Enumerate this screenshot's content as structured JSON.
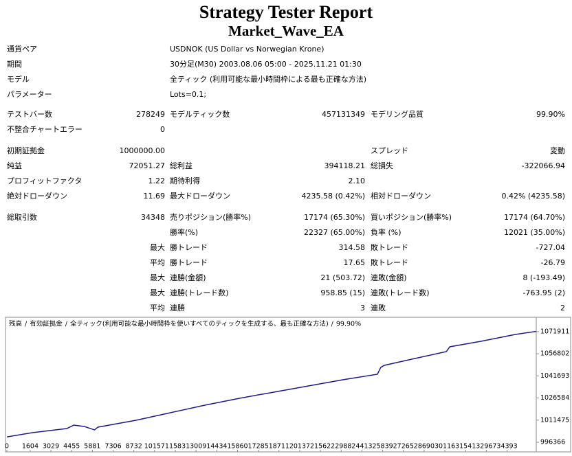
{
  "header": {
    "title": "Strategy Tester Report",
    "subtitle": "Market_Wave_EA"
  },
  "info": [
    [
      "通貨ペア",
      "USDNOK (US Dollar vs Norwegian Krone)"
    ],
    [
      "期間",
      "30分足(M30) 2003.08.06 05:00 - 2025.11.21 01:30"
    ],
    [
      "モデル",
      "全ティック (利用可能な最小時間枠による最も正確な方法)"
    ],
    [
      "パラメーター",
      "Lots=0.1;"
    ]
  ],
  "sections": [
    {
      "rows": [
        [
          "テストバー数",
          "278249",
          "モデルティック数",
          "457131349",
          "モデリング品質",
          "99.90%"
        ],
        [
          "不整合チャートエラー",
          "0",
          null,
          null,
          null,
          null
        ]
      ]
    },
    {
      "rows": [
        [
          "初期証拠金",
          "1000000.00",
          null,
          null,
          "スプレッド",
          "変動"
        ],
        [
          "純益",
          "72051.27",
          "総利益",
          "394118.21",
          "総損失",
          "-322066.94"
        ],
        [
          "プロフィットファクタ",
          "1.22",
          "期待利得",
          "2.10",
          null,
          null
        ],
        [
          "絶対ドローダウン",
          "11.69",
          "最大ドローダウン",
          "4235.58 (0.42%)",
          "相対ドローダウン",
          "0.42% (4235.58)"
        ]
      ]
    },
    {
      "rows": [
        [
          "総取引数",
          "34348",
          "売りポジション(勝率%)",
          "17174 (65.30%)",
          "買いポジション(勝率%)",
          "17174 (64.70%)"
        ],
        [
          null,
          null,
          "勝率(%)",
          "22327 (65.00%)",
          "負率 (%)",
          "12021 (35.00%)"
        ],
        [
          null,
          "最大",
          "勝トレード",
          "314.58",
          "敗トレード",
          "-727.04"
        ],
        [
          null,
          "平均",
          "勝トレード",
          "17.65",
          "敗トレード",
          "-26.79"
        ],
        [
          null,
          "最大",
          "連勝(金額)",
          "21 (503.72)",
          "連敗(金額)",
          "8 (-193.49)"
        ],
        [
          null,
          "最大",
          "連勝(トレード数)",
          "958.85 (15)",
          "連敗(トレード数)",
          "-763.95 (2)"
        ],
        [
          null,
          "平均",
          "連勝",
          "3",
          "連敗",
          "2"
        ]
      ]
    }
  ],
  "chart_data": {
    "type": "line",
    "legend_separator": "/",
    "equity_label": "有効証拠金",
    "equity_color": "#008000",
    "model_label": "全ティック(利用可能な最小時間枠を使いすべてのティックを生成する、最も正確な方法)",
    "quality": "99.90%",
    "xlim": [
      0,
      36400
    ],
    "xticks": [
      0,
      1604,
      3029,
      4455,
      5881,
      7306,
      8732,
      10157,
      11583,
      13009,
      14434,
      15860,
      17285,
      18711,
      20137,
      21562,
      22988,
      24413,
      25839,
      27265,
      28690,
      30116,
      31541,
      32967,
      34393
    ],
    "ylim": [
      992600,
      1080800
    ],
    "yticks": [
      996366,
      1011475,
      1026584,
      1041693,
      1056802,
      1071911
    ],
    "series": [
      {
        "name": "残高",
        "color": "#1a1a8c",
        "x": [
          0,
          1755,
          4127,
          4602,
          5313,
          6025,
          6262,
          8871,
          11243,
          13615,
          15987,
          18359,
          20731,
          23102,
          25474,
          25712,
          25949,
          27846,
          30218,
          30455,
          32590,
          34962,
          36385
        ],
        "values": [
          1000000,
          1002935,
          1005750,
          1008096,
          1007158,
          1004812,
          1006688,
          1011380,
          1016542,
          1021703,
          1026395,
          1030618,
          1034840,
          1039063,
          1042817,
          1047509,
          1048917,
          1053140,
          1058301,
          1061586,
          1065339,
          1070032,
          1072051
        ]
      }
    ]
  }
}
